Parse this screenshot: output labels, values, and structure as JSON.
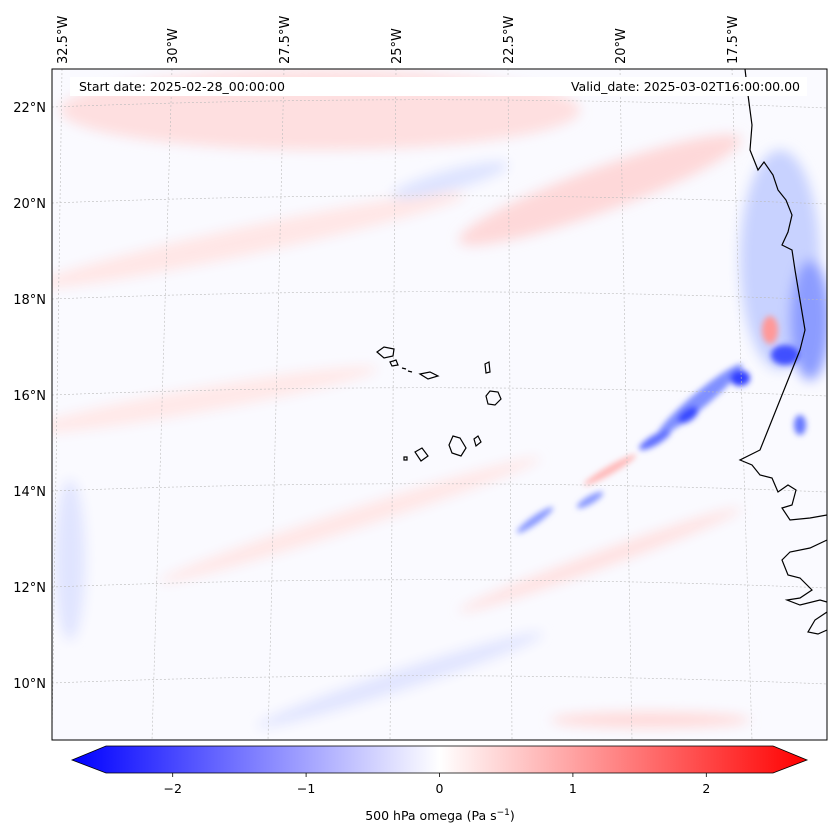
{
  "map": {
    "header": {
      "start_date": "Start date: 2025-02-28_00:00:00",
      "valid_date": "Valid_date: 2025-03-02T16:00:00.00"
    },
    "lon_labels": [
      "32.5°W",
      "30°W",
      "27.5°W",
      "25°W",
      "22.5°W",
      "20°W",
      "17.5°W"
    ],
    "lat_labels": [
      "22°N",
      "20°N",
      "18°N",
      "16°N",
      "14°N",
      "12°N",
      "10°N"
    ],
    "colorbar": {
      "ticks": [
        "−2",
        "−1",
        "0",
        "1",
        "2"
      ],
      "tick_values": [
        -2,
        -1,
        0,
        1,
        2
      ],
      "range": [
        -2.5,
        2.5
      ],
      "label_main": "500 hPa omega (Pa s",
      "label_sup": "−1",
      "label_end": ")",
      "colormap": "bwr",
      "colors": {
        "negative": "#0000ff",
        "zero": "#ffffff",
        "positive": "#ff0000"
      }
    },
    "islands": "Cape Verde",
    "coastline": "West Africa"
  }
}
